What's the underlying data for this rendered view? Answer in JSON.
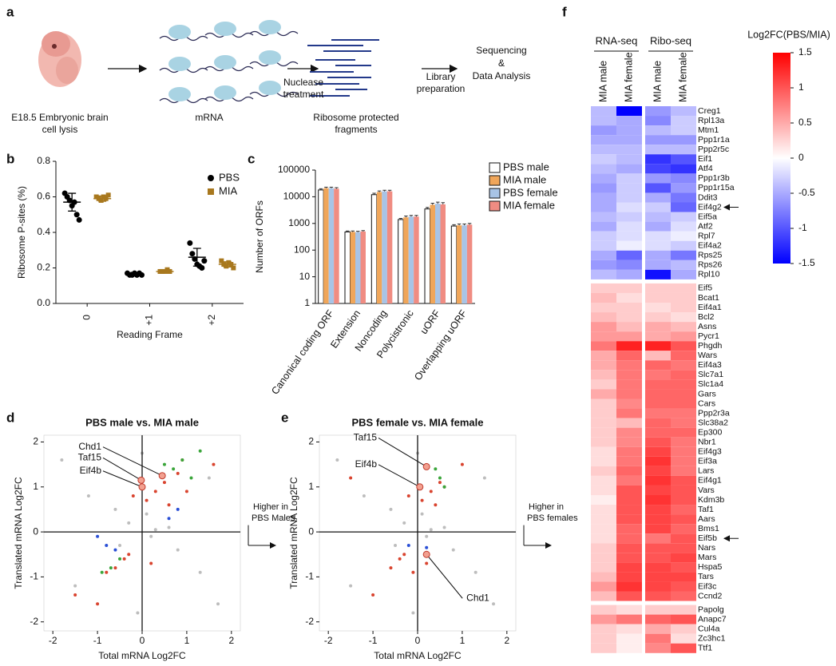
{
  "panel_labels": [
    "a",
    "b",
    "c",
    "d",
    "e",
    "f"
  ],
  "diagram": {
    "steps": [
      {
        "lines": [
          "E18.5 Embryonic brain",
          "cell lysis"
        ]
      },
      {
        "lines": [
          "mRNA"
        ]
      },
      {
        "lines": [
          "Nuclease",
          "treatment"
        ]
      },
      {
        "lines": [
          "Ribosome protected",
          "fragments"
        ]
      },
      {
        "lines": [
          "Library",
          "preparation"
        ]
      },
      {
        "lines": [
          "Sequencing",
          "&",
          "Data Analysis"
        ]
      }
    ]
  },
  "chart_data": [
    {
      "type": "dotplot",
      "ylabel": "Ribosome P-sites (%)",
      "xlabel": "Reading Frame",
      "categories": [
        "0",
        "+1",
        "+2"
      ],
      "ylim": [
        0,
        0.8
      ],
      "yticks": [
        {
          "value": 0,
          "label": "0.0"
        },
        0.2,
        0.4,
        0.6,
        0.8
      ],
      "series": [
        {
          "name": "PBS",
          "color": "#000000",
          "marker": "circle",
          "values": [
            [
              0.62,
              0.6,
              0.58,
              0.55,
              0.57,
              0.5,
              0.47
            ],
            [
              0.17,
              0.16,
              0.16,
              0.17,
              0.16,
              0.17,
              0.16
            ],
            [
              0.34,
              0.28,
              0.25,
              0.22,
              0.21,
              0.2,
              0.24
            ]
          ],
          "mean": [
            0.57,
            0.165,
            0.26
          ],
          "error": [
            0.05,
            0.01,
            0.05
          ]
        },
        {
          "name": "MIA",
          "color": "#a8781e",
          "marker": "square",
          "values": [
            [
              0.6,
              0.59,
              0.58,
              0.6,
              0.59,
              0.61
            ],
            [
              0.18,
              0.18,
              0.18,
              0.19,
              0.18
            ],
            [
              0.24,
              0.22,
              0.21,
              0.23,
              0.22,
              0.2
            ]
          ],
          "mean": [
            0.59,
            0.18,
            0.22
          ],
          "error": [
            0.015,
            0.005,
            0.015
          ]
        }
      ]
    },
    {
      "type": "bar",
      "ylabel": "Number of ORFs",
      "yscale": "log",
      "categories": [
        "Canonical coding ORF",
        "Extension",
        "Noncoding",
        "Polycistronic",
        "uORF",
        "Overlapping uORF"
      ],
      "ylim": [
        1,
        100000
      ],
      "yticks": [
        1,
        10,
        100,
        1000,
        10000,
        100000
      ],
      "series": [
        {
          "name": "PBS male",
          "color": "#ffffff",
          "values": [
            18000,
            480,
            12000,
            1400,
            3500,
            800
          ],
          "errors": [
            2000,
            40,
            1500,
            150,
            500,
            100
          ]
        },
        {
          "name": "MIA male",
          "color": "#f0a65a",
          "values": [
            21000,
            480,
            15000,
            1700,
            5000,
            850
          ],
          "errors": [
            2000,
            40,
            1500,
            200,
            700,
            100
          ]
        },
        {
          "name": "PBS female",
          "color": "#a8c4e6",
          "values": [
            21000,
            470,
            16000,
            1800,
            5500,
            850
          ],
          "errors": [
            2000,
            40,
            1500,
            200,
            800,
            100
          ]
        },
        {
          "name": "MIA female",
          "color": "#f08c82",
          "values": [
            20000,
            500,
            16000,
            1800,
            5200,
            900
          ],
          "errors": [
            2000,
            40,
            1500,
            200,
            800,
            100
          ]
        }
      ]
    },
    {
      "type": "scatter",
      "title": "PBS male vs. MIA male",
      "xlabel": "Total mRNA Log2FC",
      "ylabel": "Translated mRNA Log2FC",
      "annotation": [
        "Higher in",
        "PBS Males"
      ],
      "xlim": [
        -2.2,
        2.2
      ],
      "ylim": [
        -2.2,
        2.15
      ],
      "xticks": [
        -2,
        -1,
        0,
        1,
        2
      ],
      "yticks": [
        -2,
        -1,
        0,
        1,
        2
      ],
      "series": [
        {
          "color": "#bdbdbd",
          "x": [
            -0.3,
            0.2,
            0.1,
            -0.5,
            0.6,
            -1.2,
            1.3,
            -1.8,
            1.7,
            0.0,
            -0.1,
            0.3,
            -0.6,
            0.8,
            -1.5,
            1.5
          ],
          "values": [
            0.2,
            -0.1,
            0.4,
            -0.3,
            0.1,
            0.8,
            -0.9,
            1.6,
            -1.6,
            1.75,
            -1.8,
            0.05,
            0.5,
            -0.4,
            -1.2,
            1.2
          ]
        },
        {
          "color": "#d9442f",
          "x": [
            0.3,
            0.5,
            0.1,
            0.8,
            -0.2,
            1.0,
            0.6,
            -0.4,
            -0.6,
            -0.3,
            0.2,
            -0.8,
            1.6,
            -1.5,
            0.9,
            -1.0
          ],
          "values": [
            0.9,
            1.1,
            0.7,
            1.3,
            0.8,
            0.9,
            0.6,
            -0.6,
            -0.8,
            -0.5,
            -0.7,
            -0.9,
            1.5,
            -1.4,
            1.6,
            -1.6
          ]
        },
        {
          "color": "#3aa53a",
          "x": [
            0.7,
            0.9,
            1.1,
            0.5,
            1.3,
            -0.7,
            -0.9,
            -0.5
          ],
          "values": [
            1.4,
            1.6,
            1.2,
            1.5,
            1.8,
            -0.8,
            -0.9,
            -0.6
          ]
        },
        {
          "color": "#2a4fd6",
          "x": [
            0.6,
            0.8,
            -0.8,
            -1.0,
            -0.6
          ],
          "values": [
            0.3,
            0.5,
            -0.3,
            -0.1,
            -0.4
          ]
        }
      ],
      "highlights": {
        "labels": [
          "Chd1",
          "Taf15",
          "Eif4b"
        ],
        "x": [
          0.45,
          -0.02,
          0.0
        ],
        "values": [
          1.25,
          1.15,
          1.0
        ]
      }
    },
    {
      "type": "scatter",
      "title": "PBS female vs. MIA female",
      "xlabel": "Total mRNA Log2FC",
      "ylabel": "Translated mRNA Log2FC",
      "annotation": [
        "Higher in",
        "PBS females"
      ],
      "xlim": [
        -2.2,
        2.2
      ],
      "ylim": [
        -2.2,
        2.15
      ],
      "xticks": [
        -2,
        -1,
        0,
        1,
        2
      ],
      "yticks": [
        -2,
        -1,
        0,
        1,
        2
      ],
      "series": [
        {
          "color": "#bdbdbd",
          "x": [
            -0.3,
            0.2,
            0.1,
            -0.5,
            0.6,
            -1.2,
            1.3,
            -1.8,
            1.7,
            0.0,
            -0.1,
            0.3,
            -0.6,
            0.8,
            -1.5,
            1.5
          ],
          "values": [
            0.2,
            -0.1,
            0.4,
            -0.3,
            0.1,
            0.8,
            -0.9,
            1.6,
            -1.6,
            1.75,
            -1.8,
            0.05,
            0.5,
            -0.4,
            -1.2,
            1.2
          ]
        },
        {
          "color": "#d9442f",
          "x": [
            0.3,
            0.5,
            0.1,
            0.6,
            -0.2,
            0.4,
            -0.4,
            -0.6,
            -0.3,
            0.2,
            -0.1,
            -1.0,
            1.0,
            -1.5
          ],
          "values": [
            0.9,
            1.1,
            0.7,
            1.0,
            0.8,
            0.6,
            -0.6,
            -0.8,
            -0.5,
            -0.7,
            -0.9,
            -1.4,
            1.5,
            1.2
          ]
        },
        {
          "color": "#3aa53a",
          "x": [
            0.5,
            0.6,
            0.4
          ],
          "values": [
            1.2,
            1.0,
            1.4
          ]
        },
        {
          "color": "#2a4fd6",
          "x": [
            0.2,
            -0.2
          ],
          "values": [
            -0.35,
            -0.3
          ]
        }
      ],
      "highlights": {
        "labels": [
          "Taf15",
          "Eif4b",
          "Chd1"
        ],
        "x": [
          0.2,
          0.05,
          0.2
        ],
        "values": [
          1.45,
          1.0,
          -0.5
        ]
      }
    },
    {
      "type": "heatmap",
      "colorbar_title": "Log2FC(PBS/MIA)",
      "column_groups": [
        "RNA-seq",
        "Ribo-seq"
      ],
      "columns": [
        "MIA male",
        "MIA female",
        "MIA male",
        "MIA female"
      ],
      "zlim": [
        -1.5,
        1.5
      ],
      "colorbar_ticks": [
        1.5,
        1,
        0.5,
        0,
        -0.5,
        -1,
        -1.5
      ],
      "rows": [
        "Creg1",
        "Rpl13a",
        "Mtm1",
        "Ppp1r1a",
        "Ppp2r5c",
        "Eif1",
        "Atf4",
        "Ppp1r3b",
        "Ppp1r15a",
        "Ddit3",
        "Eif4g2",
        "Eif5a",
        "Atf2",
        "Rpl7",
        "Eif4a2",
        "Rps25",
        "Rps26",
        "Rpl10",
        "Eif5",
        "Bcat1",
        "Eif4a1",
        "Bcl2",
        "Asns",
        "Pycr1",
        "Phgdh",
        "Wars",
        "Eif4a3",
        "Slc7a1",
        "Slc1a4",
        "Gars",
        "Cars",
        "Ppp2r3a",
        "Slc38a2",
        "Ep300",
        "Nbr1",
        "Eif4g3",
        "Eif3a",
        "Lars",
        "Eif4g1",
        "Vars",
        "Kdm3b",
        "Taf1",
        "Aars",
        "Bms1",
        "Eif5b",
        "Nars",
        "Mars",
        "Hspa5",
        "Tars",
        "Eif3c",
        "Ccnd2",
        "Papolg",
        "Anapc7",
        "Cul4a",
        "Zc3hc1",
        "Ttf1"
      ],
      "values": [
        [
          -0.4,
          -1.5,
          -0.6,
          -0.4
        ],
        [
          -0.4,
          -0.5,
          -0.7,
          -0.3
        ],
        [
          -0.6,
          -0.5,
          -0.4,
          -0.3
        ],
        [
          -0.5,
          -0.5,
          -0.6,
          -0.6
        ],
        [
          -0.4,
          -0.4,
          -0.4,
          -0.4
        ],
        [
          -0.3,
          -0.4,
          -1.2,
          -1.0
        ],
        [
          -0.4,
          -0.5,
          -1.1,
          -1.2
        ],
        [
          -0.5,
          -0.3,
          -0.6,
          -0.7
        ],
        [
          -0.6,
          -0.3,
          -1.0,
          -0.6
        ],
        [
          -0.5,
          -0.3,
          -0.5,
          -0.8
        ],
        [
          -0.5,
          -0.2,
          -0.3,
          -0.9
        ],
        [
          -0.4,
          -0.3,
          -0.4,
          -0.3
        ],
        [
          -0.5,
          -0.2,
          -0.5,
          -0.2
        ],
        [
          -0.3,
          -0.2,
          -0.2,
          -0.1
        ],
        [
          -0.3,
          -0.1,
          -0.2,
          -0.3
        ],
        [
          -0.5,
          -0.9,
          -0.5,
          -0.8
        ],
        [
          -0.6,
          -0.7,
          -0.5,
          -0.4
        ],
        [
          -0.4,
          -0.5,
          -1.4,
          -0.5
        ],
        [
          0.3,
          0.3,
          0.3,
          0.3
        ],
        [
          0.4,
          0.2,
          0.3,
          0.3
        ],
        [
          0.3,
          0.3,
          0.2,
          0.3
        ],
        [
          0.4,
          0.3,
          0.3,
          0.2
        ],
        [
          0.6,
          0.4,
          0.5,
          0.4
        ],
        [
          0.6,
          0.6,
          0.5,
          0.6
        ],
        [
          0.8,
          1.3,
          1.3,
          1.0
        ],
        [
          0.5,
          0.9,
          0.4,
          0.9
        ],
        [
          0.5,
          0.8,
          0.9,
          0.8
        ],
        [
          0.4,
          0.8,
          0.8,
          0.9
        ],
        [
          0.3,
          0.8,
          0.9,
          0.9
        ],
        [
          0.5,
          0.8,
          0.9,
          0.9
        ],
        [
          0.3,
          0.7,
          0.9,
          0.9
        ],
        [
          0.3,
          0.8,
          0.8,
          0.8
        ],
        [
          0.3,
          0.4,
          0.9,
          0.8
        ],
        [
          0.3,
          0.7,
          0.9,
          0.9
        ],
        [
          0.3,
          0.7,
          1.0,
          0.8
        ],
        [
          0.2,
          0.8,
          1.1,
          0.8
        ],
        [
          0.2,
          0.8,
          1.2,
          0.8
        ],
        [
          0.3,
          0.9,
          1.1,
          0.8
        ],
        [
          0.2,
          0.8,
          1.2,
          1.0
        ],
        [
          0.2,
          1.0,
          1.1,
          1.0
        ],
        [
          0.1,
          1.0,
          1.2,
          1.0
        ],
        [
          0.2,
          1.0,
          1.1,
          0.9
        ],
        [
          0.2,
          1.0,
          1.1,
          1.0
        ],
        [
          0.2,
          0.9,
          1.1,
          0.9
        ],
        [
          0.2,
          0.9,
          0.8,
          1.0
        ],
        [
          0.3,
          1.0,
          1.0,
          1.0
        ],
        [
          0.3,
          1.0,
          1.0,
          1.1
        ],
        [
          0.3,
          1.1,
          1.1,
          1.0
        ],
        [
          0.4,
          1.1,
          1.1,
          1.1
        ],
        [
          0.6,
          1.2,
          1.1,
          1.0
        ],
        [
          0.4,
          1.0,
          1.0,
          0.9
        ],
        [
          0.3,
          0.2,
          0.3,
          0.3
        ],
        [
          0.6,
          0.8,
          0.9,
          1.0
        ],
        [
          0.3,
          0.2,
          0.5,
          0.3
        ],
        [
          0.3,
          0.1,
          0.8,
          0.2
        ],
        [
          0.3,
          0.1,
          0.7,
          1.0
        ]
      ]
    }
  ]
}
